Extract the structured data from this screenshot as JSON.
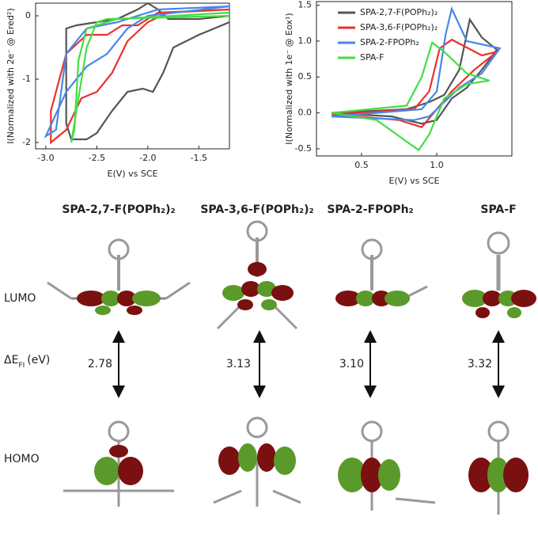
{
  "chart_data": [
    {
      "type": "line",
      "xlabel": "E(V) vs SCE",
      "ylabel": "I(Normalized with 2e⁻ @ Ered²)",
      "xlim": [
        -3.1,
        -1.2
      ],
      "xticks": [
        {
          "value": -3,
          "label": "-3.0"
        },
        -2.5,
        {
          "value": -2,
          "label": "-2.0"
        },
        -1.5
      ],
      "ylim": [
        -2.1,
        0.2
      ],
      "yticks": [
        -2,
        -1,
        0
      ],
      "series": [
        {
          "color": "#555555",
          "x": [
            -1.2,
            -1.5,
            -1.75,
            -1.85,
            -1.95,
            -2.05,
            -2.2,
            -2.35,
            -2.5,
            -2.6,
            -2.75,
            -2.8,
            -2.8,
            -2.7,
            -2.5,
            -2.3,
            -2.1,
            -2.0,
            -1.9,
            -1.8,
            -1.5,
            -1.2
          ],
          "values": [
            -0.1,
            -0.3,
            -0.5,
            -0.9,
            -1.2,
            -1.15,
            -1.2,
            -1.5,
            -1.85,
            -1.95,
            -1.95,
            -1.7,
            -0.2,
            -0.15,
            -0.1,
            -0.05,
            0.1,
            0.2,
            0.1,
            -0.05,
            -0.05,
            0.0
          ]
        },
        {
          "color": "#e8322e",
          "x": [
            -1.2,
            -1.8,
            -2.0,
            -2.2,
            -2.35,
            -2.5,
            -2.65,
            -2.8,
            -2.95,
            -2.95,
            -2.8,
            -2.6,
            -2.4,
            -2.25,
            -2.1,
            -1.9,
            -1.2
          ],
          "values": [
            0.1,
            0.05,
            -0.1,
            -0.4,
            -0.9,
            -1.2,
            -1.3,
            -1.8,
            -2.0,
            -1.5,
            -0.6,
            -0.3,
            -0.3,
            -0.15,
            -0.15,
            0.05,
            0.1
          ]
        },
        {
          "color": "#4a86e8",
          "x": [
            -1.2,
            -2.0,
            -2.2,
            -2.4,
            -2.6,
            -2.8,
            -3.0,
            -2.9,
            -2.8,
            -2.6,
            -2.3,
            -1.9,
            -1.2
          ],
          "values": [
            0.15,
            0.0,
            -0.2,
            -0.6,
            -0.8,
            -1.2,
            -1.9,
            -1.8,
            -0.6,
            -0.2,
            -0.1,
            0.1,
            0.15
          ]
        },
        {
          "color": "#44dd44",
          "x": [
            -1.2,
            -2.4,
            -2.5,
            -2.6,
            -2.7,
            -2.75,
            -2.72,
            -2.68,
            -2.6,
            -2.5,
            -2.3,
            -1.2
          ],
          "values": [
            0.0,
            -0.05,
            -0.1,
            -0.5,
            -1.5,
            -2.0,
            -1.8,
            -0.7,
            -0.2,
            -0.15,
            -0.05,
            0.05
          ]
        }
      ]
    },
    {
      "type": "line",
      "xlabel": "E(V) vs SCE",
      "ylabel": "I(Normalized with 1e⁻ @ Eox¹)",
      "xlim": [
        0.2,
        1.5
      ],
      "xticks": [
        0.5,
        {
          "value": 1,
          "label": "1.0"
        }
      ],
      "ylim": [
        -0.6,
        1.55
      ],
      "yticks": [
        -0.5,
        {
          "value": 0,
          "label": "0.0"
        },
        0.5,
        {
          "value": 1,
          "label": "1.0"
        },
        1.5
      ],
      "legend": "upper right",
      "series": [
        {
          "name": "SPA-2,7-F(POPh₂)₂",
          "color": "#555555",
          "x": [
            0.3,
            0.8,
            0.95,
            1.05,
            1.15,
            1.22,
            1.3,
            1.4,
            1.3,
            1.2,
            1.1,
            1.0,
            0.9,
            0.7,
            0.3
          ],
          "values": [
            0.0,
            0.05,
            0.15,
            0.25,
            0.6,
            1.3,
            1.05,
            0.88,
            0.6,
            0.35,
            0.2,
            -0.1,
            -0.15,
            -0.05,
            0.0
          ]
        },
        {
          "name": "SPA-3,6-F(POPh₂)₂",
          "color": "#e8322e",
          "x": [
            0.3,
            0.85,
            0.95,
            1.02,
            1.1,
            1.3,
            1.4,
            1.25,
            1.1,
            1.0,
            0.9,
            0.75,
            0.3
          ],
          "values": [
            -0.02,
            0.05,
            0.3,
            0.9,
            1.02,
            0.8,
            0.85,
            0.6,
            0.3,
            0.05,
            -0.2,
            -0.1,
            -0.02
          ]
        },
        {
          "name": "SPA-2-FPOPh₂",
          "color": "#4a86e8",
          "x": [
            0.3,
            0.9,
            1.0,
            1.06,
            1.1,
            1.2,
            1.42,
            1.3,
            1.15,
            1.05,
            0.95,
            0.85,
            0.3
          ],
          "values": [
            -0.05,
            0.05,
            0.3,
            1.1,
            1.45,
            1.0,
            0.9,
            0.55,
            0.35,
            0.15,
            -0.05,
            -0.1,
            -0.05
          ]
        },
        {
          "name": "SPA-F",
          "color": "#44dd44",
          "x": [
            0.3,
            0.8,
            0.9,
            0.97,
            1.05,
            1.2,
            1.35,
            1.2,
            1.05,
            0.95,
            0.88,
            0.8,
            0.6,
            0.3
          ],
          "values": [
            0.0,
            0.1,
            0.5,
            0.98,
            0.85,
            0.55,
            0.45,
            0.4,
            0.2,
            -0.3,
            -0.52,
            -0.4,
            -0.1,
            0.0
          ]
        }
      ]
    }
  ],
  "orbital_panel": {
    "columns": [
      {
        "name": "SPA-2,7-F(POPh₂)₂",
        "color": "#111111",
        "gap": "2.78"
      },
      {
        "name": "SPA-3,6-F(POPh₂)₂",
        "color": "#e8322e",
        "gap": "3.13"
      },
      {
        "name": "SPA-2-FPOPh₂",
        "color": "#4a86e8",
        "gap": "3.10"
      },
      {
        "name": "SPA-F",
        "color": "#44dd44",
        "gap": "3.32"
      }
    ],
    "lumo_label": "LUMO",
    "homo_label": "HOMO",
    "gap_label": {
      "main": "ΔE",
      "sub": "FI",
      "unit": "(eV)"
    }
  }
}
